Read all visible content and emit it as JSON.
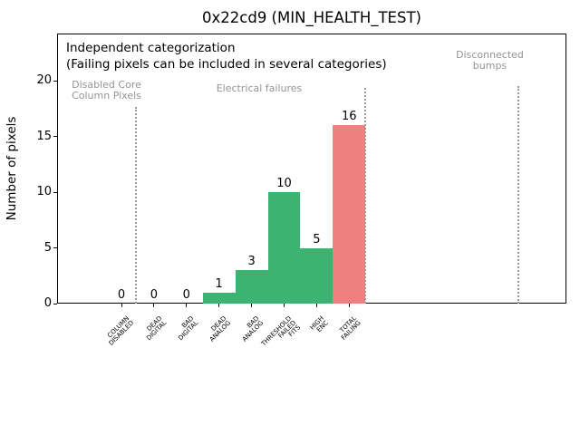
{
  "window": {
    "title": "0x22cd9 (MIN_HEALTH_TEST)"
  },
  "annotations": {
    "line1": "Independent categorization",
    "line2": "(Failing pixels can be included in several categories)"
  },
  "sections": [
    {
      "label_lines": [
        "Disabled Core",
        "Column Pixels"
      ]
    },
    {
      "label_lines": [
        "Electrical failures"
      ]
    },
    {
      "label_lines": [
        "Disconnected",
        "bumps"
      ]
    }
  ],
  "colors": {
    "pass_bar": "#3cb371",
    "fail_bar": "#f08080",
    "section_text": "#949494",
    "separator": "#9a9a9a",
    "axis": "#000000"
  },
  "chart_data": {
    "type": "bar",
    "title": "0x22cd9 (MIN_HEALTH_TEST)",
    "xlabel": "",
    "ylabel": "Number of pixels",
    "categories": [
      [
        "COLUMN",
        "DISABLED"
      ],
      [
        "DEAD",
        "DIGITAL"
      ],
      [
        "BAD",
        "DIGITAL"
      ],
      [
        "DEAD",
        "ANALOG"
      ],
      [
        "BAD",
        "ANALOG"
      ],
      [
        "THRESHOLD",
        "FAILED",
        "FITS"
      ],
      [
        "HIGH",
        "ENC"
      ],
      [
        "TOTAL",
        "FAILING"
      ]
    ],
    "values": [
      0,
      0,
      0,
      1,
      3,
      10,
      5,
      16
    ],
    "bar_color_keys": [
      "pass_bar",
      "pass_bar",
      "pass_bar",
      "pass_bar",
      "pass_bar",
      "pass_bar",
      "pass_bar",
      "fail_bar"
    ],
    "yticks": [
      0,
      5,
      10,
      15,
      20
    ],
    "ylim": [
      0,
      24.25
    ],
    "grid": false,
    "legend": null,
    "bar_width": 1.0,
    "annotations_text": [
      "Independent categorization",
      "(Failing pixels can be included in several categories)",
      "Disabled Core Column Pixels",
      "Electrical failures",
      "Disconnected bumps"
    ]
  }
}
